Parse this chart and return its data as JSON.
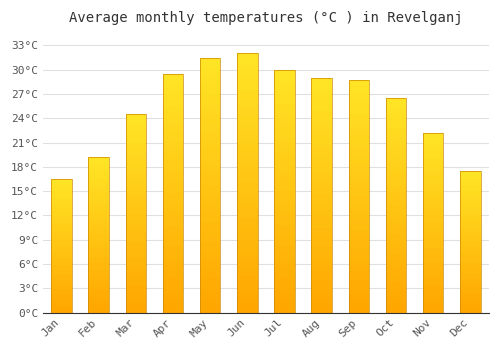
{
  "title": "Average monthly temperatures (°C ) in Revelganj",
  "months": [
    "Jan",
    "Feb",
    "Mar",
    "Apr",
    "May",
    "Jun",
    "Jul",
    "Aug",
    "Sep",
    "Oct",
    "Nov",
    "Dec"
  ],
  "temperatures": [
    16.5,
    19.2,
    24.5,
    29.5,
    31.5,
    32.0,
    30.0,
    29.0,
    28.7,
    26.5,
    22.2,
    17.5
  ],
  "bar_color_main": "#FFA500",
  "bar_color_light": "#FFD000",
  "yticks": [
    0,
    3,
    6,
    9,
    12,
    15,
    18,
    21,
    24,
    27,
    30,
    33
  ],
  "ylim": [
    0,
    34.5
  ],
  "background_color": "#FFFFFF",
  "grid_color": "#E0E0E0",
  "title_fontsize": 10,
  "tick_fontsize": 8,
  "bar_edge_color": "#CC8800"
}
